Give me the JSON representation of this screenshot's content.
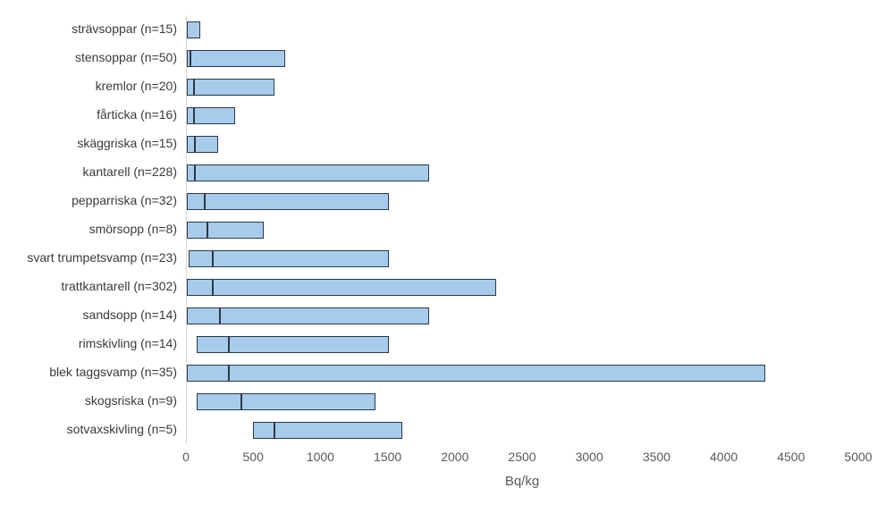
{
  "chart_data": {
    "type": "bar",
    "variant": "horizontal-range-bar-with-median",
    "title": "",
    "xlabel": "Bq/kg",
    "ylabel": "",
    "xlim": [
      0,
      5000
    ],
    "xticks": [
      0,
      500,
      1000,
      1500,
      2000,
      2500,
      3000,
      3500,
      4000,
      4500,
      5000
    ],
    "grid": false,
    "legend": "none",
    "colors": {
      "bar_fill": "#a9cbeb",
      "bar_border": "#2a3947",
      "median_line": "#2a3947",
      "axis_line": "#d6d6d6",
      "tick_text": "#595959",
      "label_text": "#3a3a3a"
    },
    "rows": [
      {
        "label": "strävsoppar (n=15)",
        "n": 15,
        "min": 0,
        "median": null,
        "max": 100
      },
      {
        "label": "stensoppar (n=50)",
        "n": 50,
        "min": 0,
        "median": 20,
        "max": 730
      },
      {
        "label": "kremlor (n=20)",
        "n": 20,
        "min": 0,
        "median": 50,
        "max": 650
      },
      {
        "label": "fårticka (n=16)",
        "n": 16,
        "min": 0,
        "median": 50,
        "max": 360
      },
      {
        "label": "skäggriska (n=15)",
        "n": 15,
        "min": 0,
        "median": 60,
        "max": 230
      },
      {
        "label": "kantarell (n=228)",
        "n": 228,
        "min": 0,
        "median": 55,
        "max": 1800
      },
      {
        "label": "pepparriska (n=32)",
        "n": 32,
        "min": 0,
        "median": 130,
        "max": 1500
      },
      {
        "label": "smörsopp (n=8)",
        "n": 8,
        "min": 0,
        "median": 150,
        "max": 570
      },
      {
        "label": "svart trumpetsvamp (n=23)",
        "n": 23,
        "min": 10,
        "median": 190,
        "max": 1500
      },
      {
        "label": "trattkantarell (n=302)",
        "n": 302,
        "min": 0,
        "median": 190,
        "max": 2300
      },
      {
        "label": "sandsopp (n=14)",
        "n": 14,
        "min": 0,
        "median": 240,
        "max": 1800
      },
      {
        "label": "rimskivling (n=14)",
        "n": 14,
        "min": 70,
        "median": 310,
        "max": 1500
      },
      {
        "label": "blek taggsvamp (n=35)",
        "n": 35,
        "min": 0,
        "median": 310,
        "max": 4300
      },
      {
        "label": "skogsriska (n=9)",
        "n": 9,
        "min": 75,
        "median": 400,
        "max": 1400
      },
      {
        "label": "sotvaxskivling (n=5)",
        "n": 5,
        "min": 490,
        "median": 650,
        "max": 1600
      }
    ]
  }
}
